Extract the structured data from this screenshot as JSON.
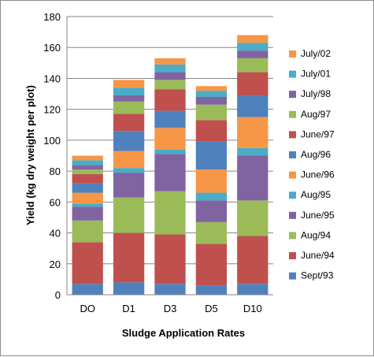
{
  "chart_data": {
    "type": "bar",
    "stacked": true,
    "categories": [
      "DO",
      "D1",
      "D3",
      "D5",
      "D10"
    ],
    "xlabel": "Sludge Application Rates",
    "ylabel": "Yield (kg dry weight per plot)",
    "ylim": [
      0,
      180
    ],
    "yticks": [
      0,
      20,
      40,
      60,
      80,
      100,
      120,
      140,
      160,
      180
    ],
    "grid": true,
    "legend_position": "right",
    "series": [
      {
        "name": "Sept/93",
        "color": "#4f81bd",
        "values": [
          7,
          8,
          7,
          6,
          7
        ]
      },
      {
        "name": "June/94",
        "color": "#c0504d",
        "values": [
          27,
          32,
          32,
          27,
          31
        ]
      },
      {
        "name": "Aug/94",
        "color": "#9bbb59",
        "values": [
          14,
          23,
          28,
          14,
          23
        ]
      },
      {
        "name": "June/95",
        "color": "#8064a2",
        "values": [
          9,
          16,
          24,
          14,
          29
        ]
      },
      {
        "name": "Aug/95",
        "color": "#4bacc6",
        "values": [
          2,
          3,
          3,
          5,
          5
        ]
      },
      {
        "name": "June/96",
        "color": "#f79646",
        "values": [
          7,
          11,
          14,
          15,
          20
        ]
      },
      {
        "name": "Aug/96",
        "color": "#4f81bd",
        "values": [
          6,
          13,
          11,
          18,
          14
        ]
      },
      {
        "name": "June/97",
        "color": "#c0504d",
        "values": [
          6,
          11,
          14,
          14,
          15
        ]
      },
      {
        "name": "Aug/97",
        "color": "#9bbb59",
        "values": [
          3,
          8,
          6,
          10,
          9
        ]
      },
      {
        "name": "July/98",
        "color": "#8064a2",
        "values": [
          3,
          4,
          5,
          5,
          5
        ]
      },
      {
        "name": "July/01",
        "color": "#4bacc6",
        "values": [
          3,
          5,
          5,
          4,
          5
        ]
      },
      {
        "name": "July/02",
        "color": "#f79646",
        "values": [
          3,
          5,
          4,
          3,
          5
        ]
      }
    ]
  }
}
